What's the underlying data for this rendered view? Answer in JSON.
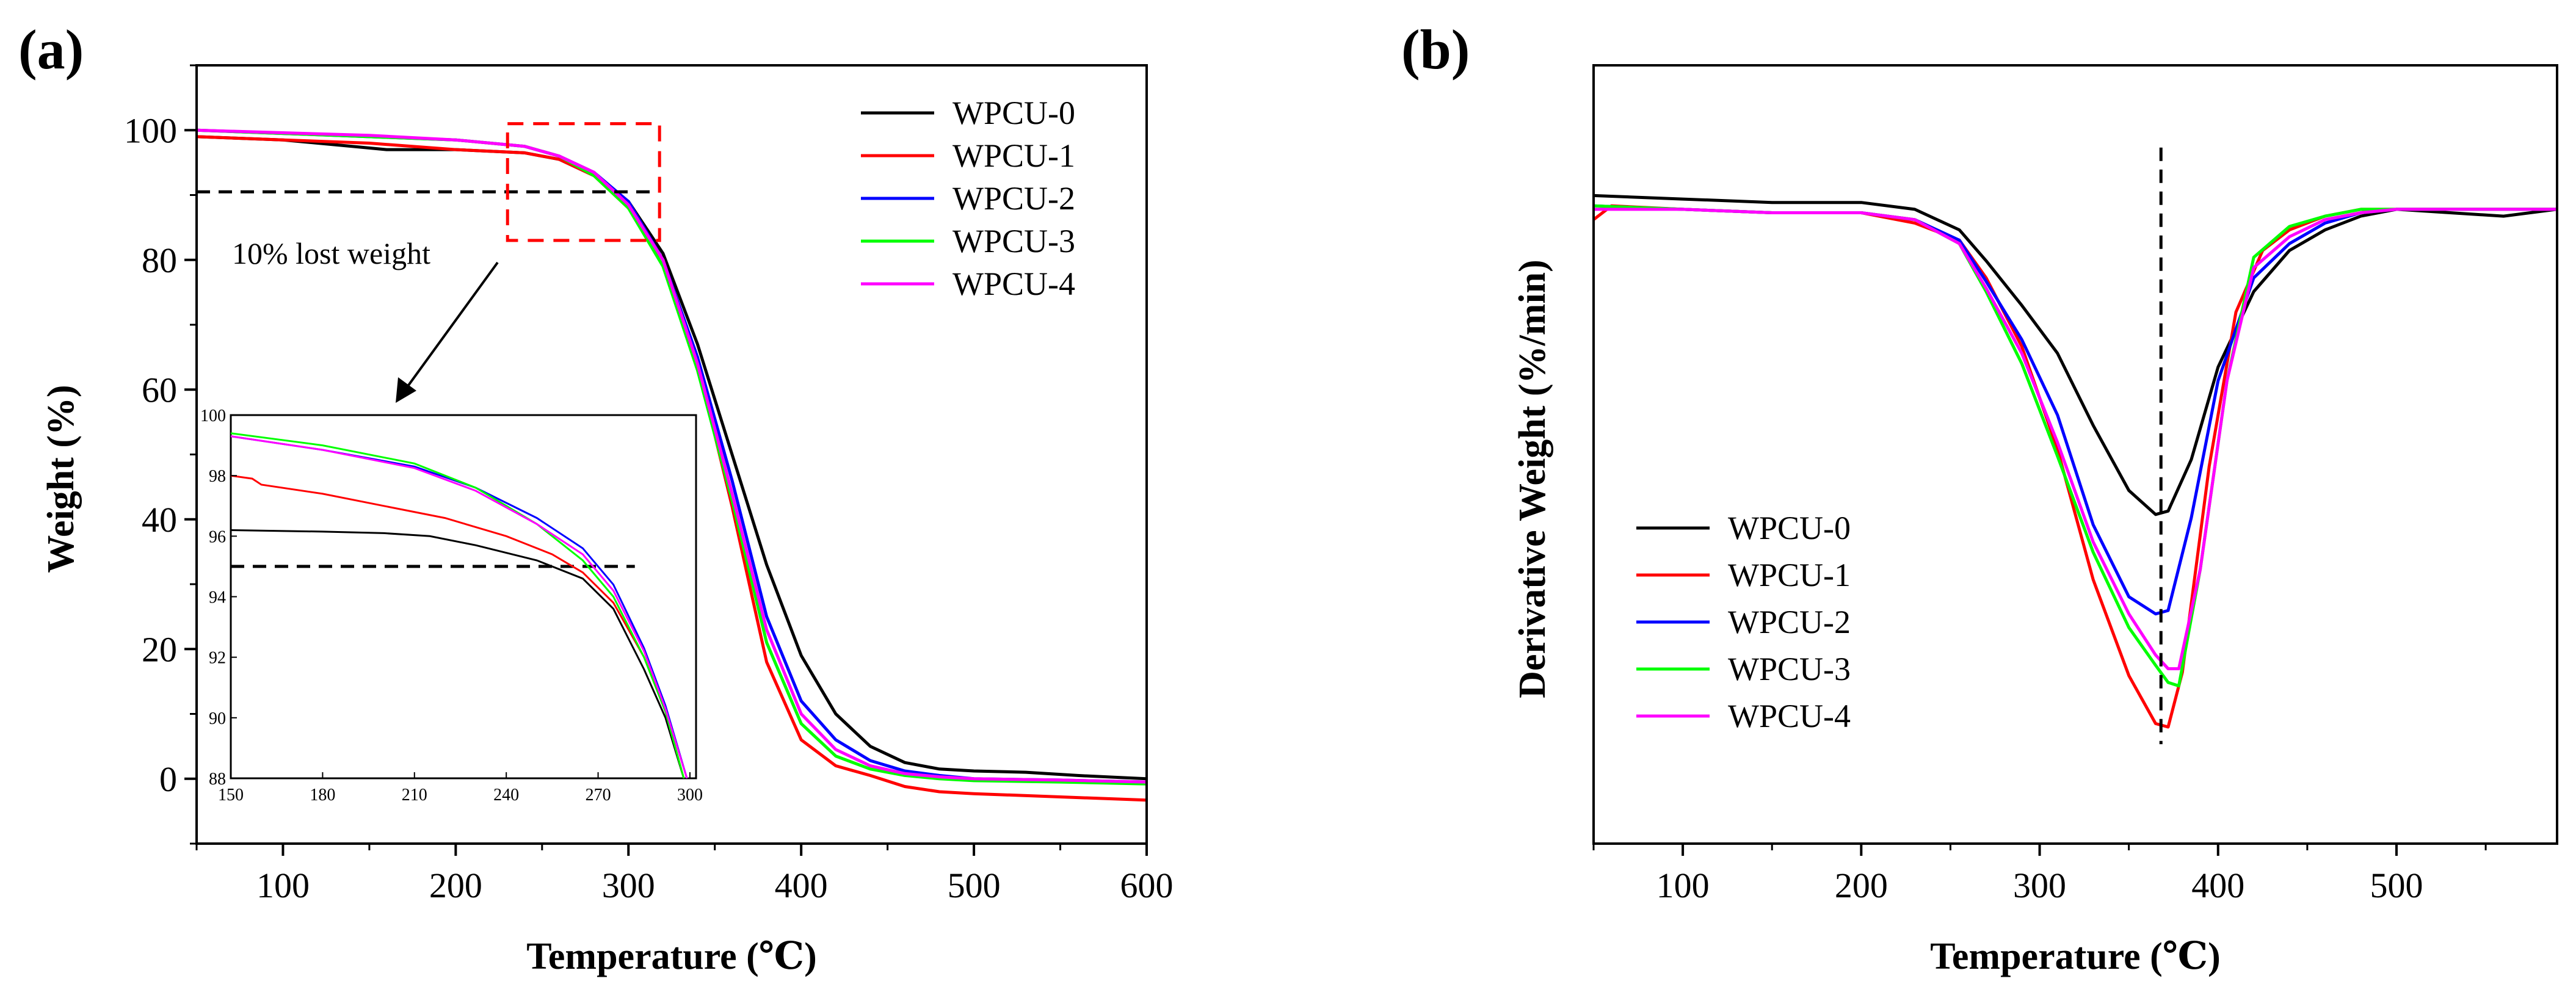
{
  "chart_data": [
    {
      "panel_label": "(a)",
      "type": "line",
      "title": "",
      "xlabel": "Temperature (℃)",
      "ylabel": "Weight (%)",
      "xlim": [
        50,
        600
      ],
      "ylim": [
        -10,
        110
      ],
      "x_ticks": [
        100,
        200,
        300,
        400,
        500,
        600
      ],
      "y_ticks": [
        0,
        20,
        40,
        60,
        80,
        100
      ],
      "legend_position": "top-right",
      "reference_line": {
        "y": 90.5,
        "x_from": 50,
        "x_to": 315,
        "style": "dashed"
      },
      "zoom_box": {
        "x": [
          230,
          318
        ],
        "y": [
          83,
          101
        ],
        "color": "#ff0000",
        "style": "dashed"
      },
      "annotation": "10% lost weight",
      "series": [
        {
          "name": "WPCU-0",
          "color": "#000000",
          "x": [
            50,
            100,
            140,
            160,
            200,
            240,
            260,
            280,
            300,
            320,
            340,
            360,
            380,
            400,
            420,
            440,
            460,
            480,
            500,
            530,
            560,
            600
          ],
          "y": [
            99,
            98.5,
            97.5,
            97,
            97,
            96.5,
            95.5,
            93,
            89,
            81,
            67,
            50,
            33,
            19,
            10,
            5,
            2.5,
            1.5,
            1.2,
            1.0,
            0.5,
            0
          ]
        },
        {
          "name": "WPCU-1",
          "color": "#ff0000",
          "x": [
            50,
            100,
            150,
            200,
            240,
            260,
            280,
            300,
            320,
            340,
            360,
            380,
            400,
            420,
            440,
            460,
            480,
            500,
            550,
            600
          ],
          "y": [
            99,
            98.5,
            98,
            97,
            96.5,
            95.5,
            93,
            88,
            80,
            64,
            42,
            18,
            6,
            2,
            0.5,
            -1.2,
            -2.0,
            -2.3,
            -2.8,
            -3.3
          ]
        },
        {
          "name": "WPCU-2",
          "color": "#0000ff",
          "x": [
            50,
            100,
            150,
            200,
            240,
            260,
            280,
            300,
            320,
            340,
            360,
            380,
            400,
            420,
            440,
            460,
            480,
            500,
            550,
            600
          ],
          "y": [
            100,
            99.5,
            99,
            98.5,
            97.5,
            96,
            93.5,
            89,
            80,
            65,
            46,
            25,
            12,
            6,
            2.8,
            1.2,
            0.5,
            0,
            -0.2,
            -0.5
          ]
        },
        {
          "name": "WPCU-3",
          "color": "#00ff00",
          "x": [
            50,
            100,
            150,
            200,
            240,
            260,
            280,
            300,
            320,
            340,
            360,
            380,
            400,
            420,
            440,
            460,
            480,
            500,
            550,
            600
          ],
          "y": [
            100,
            99.5,
            99,
            98.5,
            97.5,
            96,
            93,
            88,
            79,
            63,
            43,
            21,
            8.5,
            3.5,
            1.5,
            0.5,
            0,
            -0.3,
            -0.5,
            -0.8
          ]
        },
        {
          "name": "WPCU-4",
          "color": "#ff00ff",
          "x": [
            50,
            100,
            150,
            200,
            240,
            260,
            280,
            300,
            320,
            340,
            360,
            380,
            400,
            420,
            440,
            460,
            480,
            500,
            550,
            600
          ],
          "y": [
            100,
            99.6,
            99.2,
            98.5,
            97.5,
            96,
            93.5,
            88.5,
            80,
            64,
            44,
            23,
            10,
            4.5,
            2,
            0.8,
            0.3,
            0,
            -0.2,
            -0.5
          ]
        }
      ],
      "inset": {
        "type": "line",
        "xlim": [
          150,
          302
        ],
        "ylim": [
          88,
          100
        ],
        "x_ticks": [
          150,
          180,
          210,
          240,
          270,
          300
        ],
        "y_ticks": [
          88,
          90,
          92,
          94,
          96,
          98,
          100
        ],
        "reference_line": {
          "y": 95,
          "x_from": 150,
          "x_to": 282,
          "style": "dashed"
        },
        "series": [
          {
            "name": "WPCU-0",
            "color": "#000000",
            "x": [
              150,
              180,
              200,
              215,
              230,
              250,
              265,
              275,
              285,
              292,
              298
            ],
            "y": [
              96.2,
              96.15,
              96.1,
              96.0,
              95.7,
              95.2,
              94.6,
              93.6,
              91.6,
              90.0,
              88.0
            ]
          },
          {
            "name": "WPCU-1",
            "color": "#ff0000",
            "x": [
              150,
              157,
              160,
              180,
              200,
              220,
              240,
              255,
              265,
              275,
              285,
              292,
              298
            ],
            "y": [
              98.0,
              97.9,
              97.7,
              97.4,
              97.0,
              96.6,
              96.0,
              95.4,
              94.8,
              93.8,
              92.0,
              90.2,
              88.0
            ]
          },
          {
            "name": "WPCU-2",
            "color": "#0000ff",
            "x": [
              150,
              180,
              210,
              230,
              250,
              265,
              275,
              285,
              292,
              299
            ],
            "y": [
              99.3,
              98.85,
              98.3,
              97.6,
              96.6,
              95.6,
              94.4,
              92.3,
              90.4,
              88.0
            ]
          },
          {
            "name": "WPCU-3",
            "color": "#00ff00",
            "x": [
              150,
              180,
              210,
              230,
              250,
              265,
              275,
              285,
              292,
              298
            ],
            "y": [
              99.4,
              99.0,
              98.4,
              97.6,
              96.4,
              95.2,
              94.0,
              92.0,
              90.2,
              88.0
            ]
          },
          {
            "name": "WPCU-4",
            "color": "#ff00ff",
            "x": [
              150,
              180,
              210,
              230,
              250,
              265,
              275,
              285,
              292,
              299
            ],
            "y": [
              99.3,
              98.85,
              98.25,
              97.5,
              96.4,
              95.4,
              94.2,
              92.2,
              90.3,
              88.0
            ]
          }
        ]
      }
    },
    {
      "panel_label": "(b)",
      "type": "line",
      "title": "",
      "xlabel": "Temperature (℃)",
      "ylabel": "Derivative Weight (%/min)",
      "xlim": [
        50,
        590
      ],
      "ylim": [
        -1.85,
        0.42
      ],
      "x_ticks": [
        100,
        200,
        300,
        400,
        500
      ],
      "y_ticks": [],
      "legend_position": "lower-left",
      "reference_line": {
        "x": 368,
        "y_from": -1.56,
        "y_to": 0.18,
        "style": "dashed"
      },
      "series": [
        {
          "name": "WPCU-0",
          "color": "#000000",
          "x": [
            50,
            100,
            150,
            200,
            230,
            255,
            270,
            290,
            310,
            330,
            350,
            365,
            372,
            385,
            400,
            420,
            440,
            460,
            480,
            500,
            530,
            560,
            590
          ],
          "y": [
            0.04,
            0.03,
            0.02,
            0.02,
            0.0,
            -0.06,
            -0.15,
            -0.28,
            -0.42,
            -0.63,
            -0.82,
            -0.89,
            -0.88,
            -0.73,
            -0.46,
            -0.24,
            -0.12,
            -0.06,
            -0.02,
            0.0,
            -0.01,
            -0.02,
            0.0
          ]
        },
        {
          "name": "WPCU-1",
          "color": "#ff0000",
          "x": [
            50,
            60,
            100,
            150,
            200,
            230,
            255,
            270,
            290,
            310,
            330,
            350,
            365,
            372,
            380,
            395,
            410,
            425,
            440,
            460,
            480,
            500,
            540,
            590
          ],
          "y": [
            -0.03,
            0.01,
            0.0,
            -0.01,
            -0.01,
            -0.04,
            -0.09,
            -0.2,
            -0.4,
            -0.7,
            -1.08,
            -1.36,
            -1.5,
            -1.51,
            -1.35,
            -0.75,
            -0.3,
            -0.12,
            -0.06,
            -0.02,
            0.0,
            0.0,
            0.0,
            0.0
          ]
        },
        {
          "name": "WPCU-2",
          "color": "#0000ff",
          "x": [
            50,
            100,
            150,
            200,
            230,
            255,
            270,
            290,
            310,
            330,
            350,
            365,
            372,
            385,
            400,
            420,
            440,
            460,
            480,
            500,
            540,
            590
          ],
          "y": [
            0.01,
            0.0,
            -0.01,
            -0.01,
            -0.03,
            -0.09,
            -0.21,
            -0.38,
            -0.6,
            -0.92,
            -1.13,
            -1.18,
            -1.17,
            -0.9,
            -0.5,
            -0.2,
            -0.1,
            -0.04,
            -0.01,
            0.0,
            0.0,
            0.0
          ]
        },
        {
          "name": "WPCU-3",
          "color": "#00ff00",
          "x": [
            50,
            100,
            150,
            200,
            230,
            255,
            270,
            290,
            310,
            330,
            350,
            365,
            372,
            378,
            390,
            405,
            420,
            440,
            460,
            480,
            500,
            540,
            590
          ],
          "y": [
            0.01,
            0.0,
            -0.01,
            -0.01,
            -0.03,
            -0.1,
            -0.24,
            -0.45,
            -0.72,
            -1.0,
            -1.22,
            -1.33,
            -1.38,
            -1.39,
            -1.05,
            -0.5,
            -0.14,
            -0.05,
            -0.02,
            0.0,
            0.0,
            0.0,
            0.0
          ]
        },
        {
          "name": "WPCU-4",
          "color": "#ff00ff",
          "x": [
            50,
            100,
            150,
            200,
            230,
            255,
            270,
            290,
            310,
            330,
            350,
            365,
            372,
            378,
            390,
            405,
            420,
            440,
            460,
            480,
            500,
            540,
            590
          ],
          "y": [
            0.0,
            0.0,
            -0.01,
            -0.01,
            -0.03,
            -0.1,
            -0.23,
            -0.42,
            -0.68,
            -0.97,
            -1.18,
            -1.3,
            -1.34,
            -1.34,
            -1.05,
            -0.5,
            -0.17,
            -0.08,
            -0.03,
            -0.01,
            0.0,
            0.0,
            0.0
          ]
        }
      ]
    }
  ]
}
